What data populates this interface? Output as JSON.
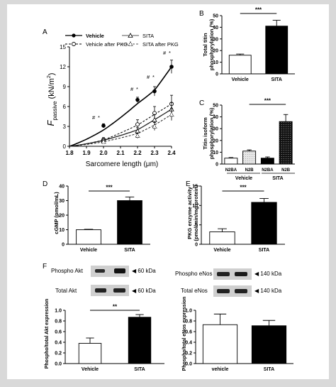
{
  "panels": {
    "A": {
      "letter": "A",
      "ylabel_main": "F",
      "ylabel_sub": "passive",
      "ylabel_unit": "(kN/m",
      "ylabel_sup": "2",
      "ylabel_close": ")",
      "xlabel": "Sarcomere length (μm)",
      "legend": [
        "Vehicle",
        "SITA",
        "Vehicle after PKG",
        "SITA after PKG"
      ],
      "annotations": [
        "#",
        "*",
        "#",
        "*",
        "#",
        "*",
        "#",
        "*",
        "#",
        "*"
      ]
    },
    "B": {
      "letter": "B",
      "ylabel": [
        "Total titin",
        "phosphorylation (%)"
      ],
      "sig": "***"
    },
    "C": {
      "letter": "C",
      "ylabel": [
        "Titin isoform",
        "phosphorylation (%)"
      ],
      "sig": "***",
      "group_labels": [
        "Vehicle",
        "SITA"
      ]
    },
    "D": {
      "letter": "D",
      "ylabel": [
        "cGMP (pmol/mL)"
      ],
      "sig": "***"
    },
    "E": {
      "letter": "E",
      "ylabel": [
        "PKG enzyme activity",
        "(pmol/min/mg protein)"
      ],
      "sig": "***"
    },
    "F": {
      "letter": "F",
      "blots_left": [
        {
          "name": "Phospho Akt",
          "size": "◀ 60 kDa"
        },
        {
          "name": "Total Akt",
          "size": "◀ 60 kDa"
        }
      ],
      "blots_right": [
        {
          "name": "Phospho eNos",
          "size": "◀ 140 kDa"
        },
        {
          "name": "Total eNos",
          "size": "◀ 140 kDa"
        }
      ],
      "ylabel_left": "Phospho/total Akt expression",
      "ylabel_right": "Phospho/total eNos expression",
      "sig_left": "**"
    }
  },
  "chart_data": [
    {
      "panel": "A",
      "type": "line",
      "xlabel": "Sarcomere length (μm)",
      "ylabel": "Fpassive (kN/m2)",
      "xlim": [
        1.8,
        2.4
      ],
      "ylim": [
        0,
        15
      ],
      "xticks": [
        "1.8",
        "1.9",
        "2.0",
        "2.1",
        "2.2",
        "2.3",
        "2.4"
      ],
      "yticks": [
        "0",
        "3",
        "6",
        "9",
        "12",
        "15"
      ],
      "x": [
        1.8,
        2.0,
        2.2,
        2.3,
        2.4
      ],
      "series": [
        {
          "name": "Vehicle",
          "values": [
            0,
            3.1,
            7.0,
            8.3,
            12.0
          ],
          "errors": [
            0,
            0.3,
            0.4,
            0.7,
            1.0
          ]
        },
        {
          "name": "Vehicle after PKG",
          "values": [
            0,
            1.0,
            3.3,
            5.0,
            6.4
          ],
          "errors": [
            0,
            0.3,
            0.7,
            1.0,
            1.3
          ]
        },
        {
          "name": "SITA",
          "values": [
            0,
            1.0,
            2.3,
            4.0,
            5.6
          ],
          "errors": [
            0,
            0.2,
            0.5,
            0.8,
            1.0
          ]
        },
        {
          "name": "SITA after PKG",
          "values": [
            0,
            0.7,
            1.6,
            3.0,
            4.8
          ],
          "errors": [
            0,
            0.2,
            0.4,
            0.6,
            0.9
          ]
        }
      ]
    },
    {
      "panel": "B",
      "type": "bar",
      "categories": [
        "Vehicle",
        "SITA"
      ],
      "values": [
        16,
        41
      ],
      "errors": [
        1,
        5
      ],
      "ylim": [
        0,
        50
      ],
      "yticks": [
        "0",
        "10",
        "20",
        "30",
        "40",
        "50"
      ],
      "ylabel": "Total titin phosphorylation (%)"
    },
    {
      "panel": "C",
      "type": "bar",
      "categories": [
        "N2BA",
        "N2B",
        "N2BA",
        "N2B"
      ],
      "values": [
        5,
        11,
        5,
        36
      ],
      "errors": [
        0.5,
        1.0,
        1.0,
        6
      ],
      "ylim": [
        0,
        50
      ],
      "yticks": [
        "0",
        "10",
        "20",
        "30",
        "40",
        "50"
      ],
      "ylabel": "Titin isoform phosphorylation (%)"
    },
    {
      "panel": "D",
      "type": "bar",
      "categories": [
        "Vehicle",
        "SITA"
      ],
      "values": [
        10,
        30
      ],
      "errors": [
        0.3,
        2.5
      ],
      "ylim": [
        0,
        40
      ],
      "yticks": [
        "0",
        "10",
        "20",
        "30",
        "40"
      ],
      "ylabel": "cGMP (pmol/mL)"
    },
    {
      "panel": "E",
      "type": "bar",
      "categories": [
        "Vehicle",
        "SITA"
      ],
      "values": [
        3.2,
        10.8
      ],
      "errors": [
        0.8,
        1.0
      ],
      "ylim": [
        0,
        15
      ],
      "yticks": [
        "0",
        "5",
        "10",
        "15"
      ],
      "ylabel": "PKG enzyme activity (pmol/min/mg protein)"
    },
    {
      "panel": "F-left",
      "type": "bar",
      "categories": [
        "Vehicle",
        "SITA"
      ],
      "values": [
        0.38,
        0.87
      ],
      "errors": [
        0.1,
        0.05
      ],
      "ylim": [
        0,
        1.0
      ],
      "yticks": [
        "0.0",
        "0.2",
        "0.4",
        "0.6",
        "0.8",
        "1.0"
      ],
      "ylabel": "Phospho/total Akt expression"
    },
    {
      "panel": "F-right",
      "type": "bar",
      "categories": [
        "vehicle",
        "SITA"
      ],
      "values": [
        0.73,
        0.71
      ],
      "errors": [
        0.2,
        0.1
      ],
      "ylim": [
        0,
        1.0
      ],
      "yticks": [
        "0.0",
        "0.2",
        "0.4",
        "0.6",
        "0.8",
        "1.0"
      ],
      "ylabel": "Phospho/total eNos expression"
    }
  ]
}
